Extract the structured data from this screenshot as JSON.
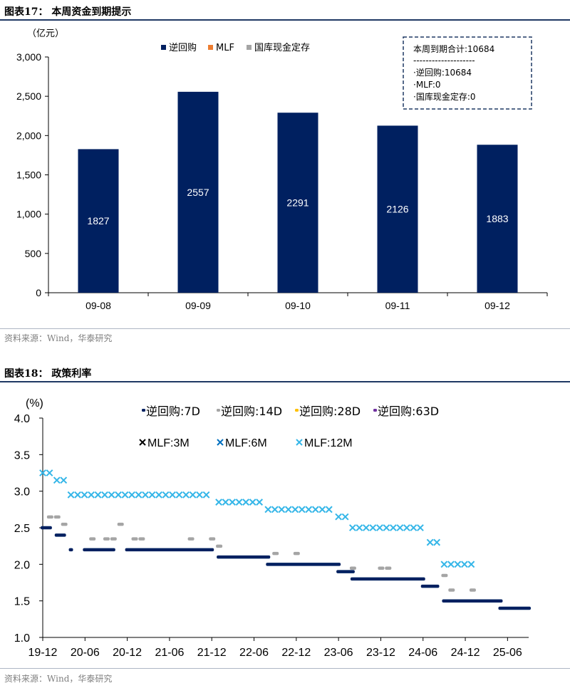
{
  "figure17": {
    "label": "图表17：",
    "title": "本周资金到期提示",
    "source": "资料来源：Wind，华泰研究"
  },
  "figure18": {
    "label": "图表18：",
    "title": "政策利率",
    "source": "资料来源：Wind，华泰研究"
  },
  "chart_data": [
    {
      "type": "bar",
      "ylabel": "（亿元）",
      "ylim": [
        0,
        3000
      ],
      "yticks": [
        0,
        500,
        1000,
        1500,
        2000,
        2500,
        3000
      ],
      "ytick_labels": [
        "0",
        "500",
        "1,000",
        "1,500",
        "2,000",
        "2,500",
        "3,000"
      ],
      "categories": [
        "09-08",
        "09-09",
        "09-10",
        "09-11",
        "09-12"
      ],
      "series": [
        {
          "name": "逆回购",
          "color": "#002060",
          "values": [
            1827,
            2557,
            2291,
            2126,
            1883
          ]
        },
        {
          "name": "MLF",
          "color": "#ed7d31",
          "values": [
            0,
            0,
            0,
            0,
            0
          ]
        },
        {
          "name": "国库现金定存",
          "color": "#a5a5a5",
          "values": [
            0,
            0,
            0,
            0,
            0
          ]
        }
      ],
      "legend_position": "top",
      "grid": false,
      "annotation": [
        "本周到期合计:10684",
        "--------------------",
        "·逆回购:10684",
        "·MLF:0",
        "·国库现金定存:0"
      ]
    },
    {
      "type": "scatter",
      "ylabel": "(%)",
      "ylim": [
        1.0,
        4.0
      ],
      "yticks": [
        1.0,
        1.5,
        2.0,
        2.5,
        3.0,
        3.5,
        4.0
      ],
      "ytick_labels": [
        "1.0",
        "1.5",
        "2.0",
        "2.5",
        "3.0",
        "3.5",
        "4.0"
      ],
      "xlim": [
        "2019-12",
        "2025-09"
      ],
      "xtick_labels": [
        "19-12",
        "20-06",
        "20-12",
        "21-06",
        "21-12",
        "22-06",
        "22-12",
        "23-06",
        "23-12",
        "24-06",
        "24-12",
        "25-06"
      ],
      "grid": false,
      "legend_position": "top",
      "series": [
        {
          "name": "逆回购:7D",
          "color": "#002060",
          "marker": "dash",
          "segments": [
            [
              "2019-12",
              "2020-01",
              2.5
            ],
            [
              "2020-02",
              "2020-03",
              2.4
            ],
            [
              "2020-04",
              "2020-04",
              2.2
            ],
            [
              "2020-06",
              "2020-10",
              2.2
            ],
            [
              "2020-12",
              "2021-12",
              2.2
            ],
            [
              "2022-01",
              "2022-08",
              2.1
            ],
            [
              "2022-08",
              "2023-06",
              2.0
            ],
            [
              "2023-06",
              "2023-08",
              1.9
            ],
            [
              "2023-08",
              "2024-06",
              1.8
            ],
            [
              "2024-06",
              "2024-08",
              1.7
            ],
            [
              "2024-09",
              "2025-01",
              1.5
            ],
            [
              "2025-01",
              "2025-05",
              1.5
            ],
            [
              "2025-05",
              "2025-09",
              1.4
            ]
          ]
        },
        {
          "name": "逆回购:14D",
          "color": "#a5a5a5",
          "marker": "dash",
          "points": [
            [
              "2020-01",
              2.65
            ],
            [
              "2020-02",
              2.65
            ],
            [
              "2020-03",
              2.55
            ],
            [
              "2020-07",
              2.35
            ],
            [
              "2020-09",
              2.35
            ],
            [
              "2020-10",
              2.35
            ],
            [
              "2020-11",
              2.55
            ],
            [
              "2021-01",
              2.35
            ],
            [
              "2021-02",
              2.35
            ],
            [
              "2021-09",
              2.35
            ],
            [
              "2021-12",
              2.35
            ],
            [
              "2022-01",
              2.25
            ],
            [
              "2022-09",
              2.15
            ],
            [
              "2022-12",
              2.15
            ],
            [
              "2023-08",
              1.95
            ],
            [
              "2023-12",
              1.95
            ],
            [
              "2024-01",
              1.95
            ],
            [
              "2024-09",
              1.85
            ],
            [
              "2024-10",
              1.65
            ],
            [
              "2025-01",
              1.65
            ]
          ]
        },
        {
          "name": "逆回购:28D",
          "color": "#ffc000",
          "marker": "dash",
          "points": []
        },
        {
          "name": "逆回购:63D",
          "color": "#7030a0",
          "marker": "dash",
          "points": []
        },
        {
          "name": "MLF:3M",
          "color": "#000000",
          "marker": "x",
          "points": []
        },
        {
          "name": "MLF:6M",
          "color": "#0070c0",
          "marker": "x",
          "points": []
        },
        {
          "name": "MLF:12M",
          "color": "#35b6e8",
          "marker": "x",
          "segments": [
            [
              "2019-12",
              "2020-01",
              3.25
            ],
            [
              "2020-02",
              "2020-03",
              3.15
            ],
            [
              "2020-04",
              "2021-12",
              2.95
            ],
            [
              "2022-01",
              "2022-07",
              2.85
            ],
            [
              "2022-08",
              "2023-05",
              2.75
            ],
            [
              "2023-06",
              "2023-07",
              2.65
            ],
            [
              "2023-08",
              "2024-06",
              2.5
            ],
            [
              "2024-07",
              "2024-08",
              2.3
            ],
            [
              "2024-09",
              "2025-01",
              2.0
            ]
          ]
        }
      ]
    }
  ]
}
